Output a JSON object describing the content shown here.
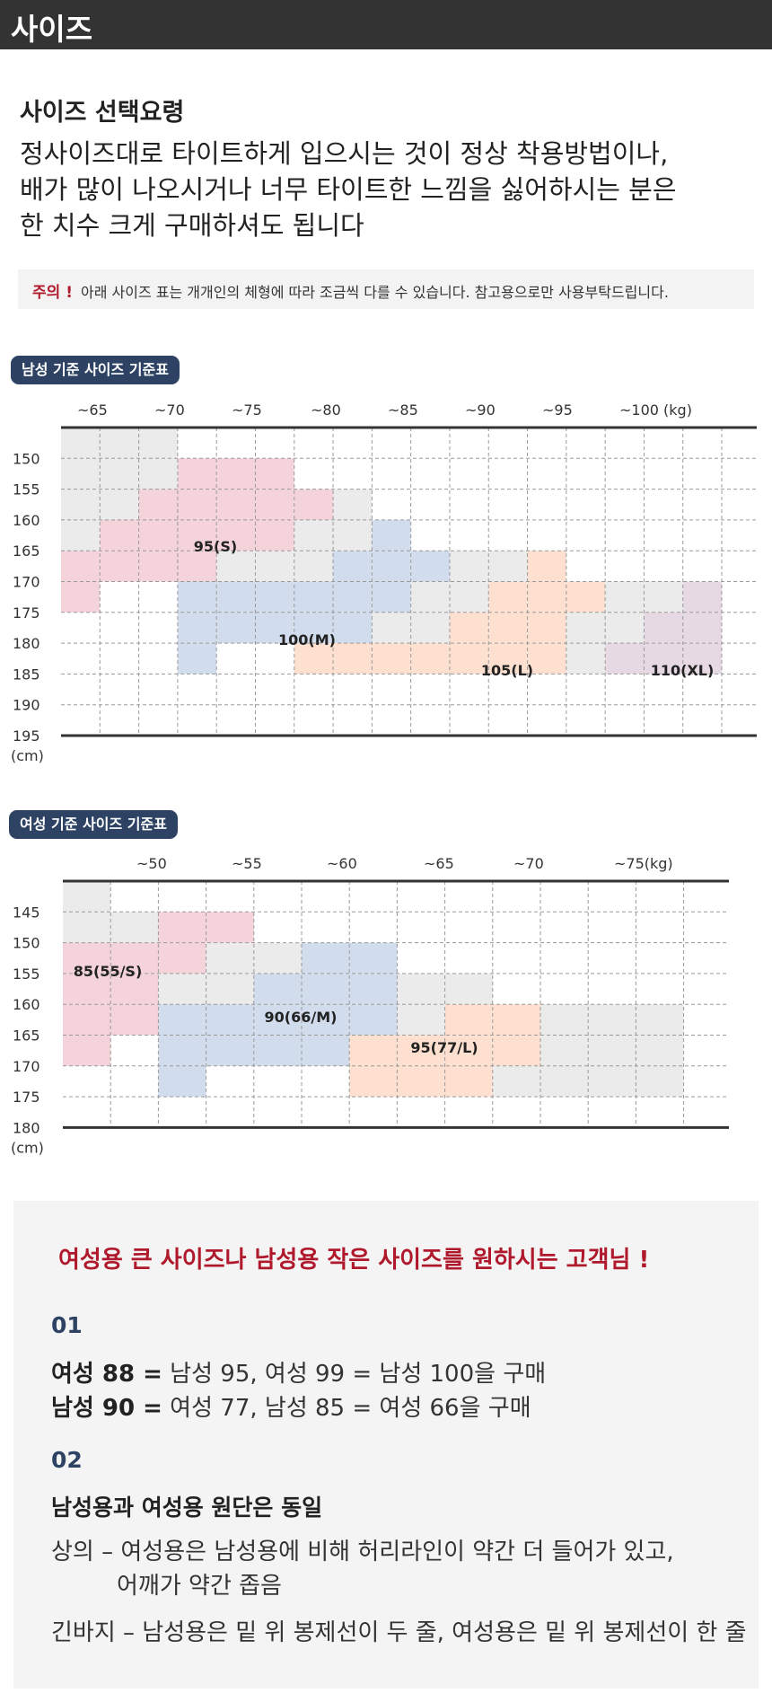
{
  "header": {
    "title": "사이즈"
  },
  "guide": {
    "title": "사이즈 선택요령",
    "lines": [
      "정사이즈대로 타이트하게 입으시는 것이 정상 착용방법이나,",
      "배가 많이 나오시거나 너무 타이트한 느낌을 싫어하시는 분은",
      "한 치수 크게 구매하셔도 됩니다"
    ]
  },
  "notice": {
    "label": "주의 !",
    "text": "아래 사이즈 표는 개개인의 체형에 따라 조금씩 다를 수 있습니다. 참고용으로만 사용부탁드립니다."
  },
  "charts": {
    "men": {
      "badge": "남성 기준 사이즈 기준표",
      "x_labels": [
        "~65",
        "~70",
        "~75",
        "~80",
        "~85",
        "~90",
        "~95",
        "~100 (kg)"
      ],
      "y_labels": [
        "150",
        "155",
        "160",
        "165",
        "170",
        "175",
        "180",
        "185",
        "190",
        "195"
      ],
      "unit": "(cm)",
      "sizes": [
        "95(S)",
        "100(M)",
        "105(L)",
        "110(XL)"
      ]
    },
    "women": {
      "badge": "여성 기준 사이즈 기준표",
      "x_labels": [
        "~50",
        "~55",
        "~60",
        "~65",
        "~70",
        "~75(kg)"
      ],
      "y_labels": [
        "145",
        "150",
        "155",
        "160",
        "165",
        "170",
        "175",
        "180"
      ],
      "unit": "(cm)",
      "sizes": [
        "85(55/S)",
        "90(66/M)",
        "95(77/L)"
      ]
    }
  },
  "colors": {
    "gray": "#ebebeb",
    "pink": "#f4d3da",
    "blue": "#d1dced",
    "orange": "#fde0cf",
    "purple": "#e6d9e3",
    "badge": "#2e4363",
    "accent": "#b0182c"
  },
  "info": {
    "title": "여성용 큰 사이즈나 남성용 작은 사이즈를 원하시는 고객님 !",
    "n1": "01",
    "r1_bold": "여성 88 =",
    "r1_text": " 남성 95, 여성 99 = 남성 100을 구매",
    "r2_bold": "남성 90 =",
    "r2_text": " 여성 77, 남성 85 = 여성 66을 구매",
    "n2": "02",
    "sub": "남성용과 여성용 원단은 동일",
    "l1": "상의 – 여성용은 남성용에 비해 허리라인이 약간 더 들어가 있고,",
    "l2": "어깨가 약간 좁음",
    "l3": "긴바지 – 남성용은 밑 위 봉제선이 두 줄, 여성용은 밑 위 봉제선이 한 줄"
  }
}
